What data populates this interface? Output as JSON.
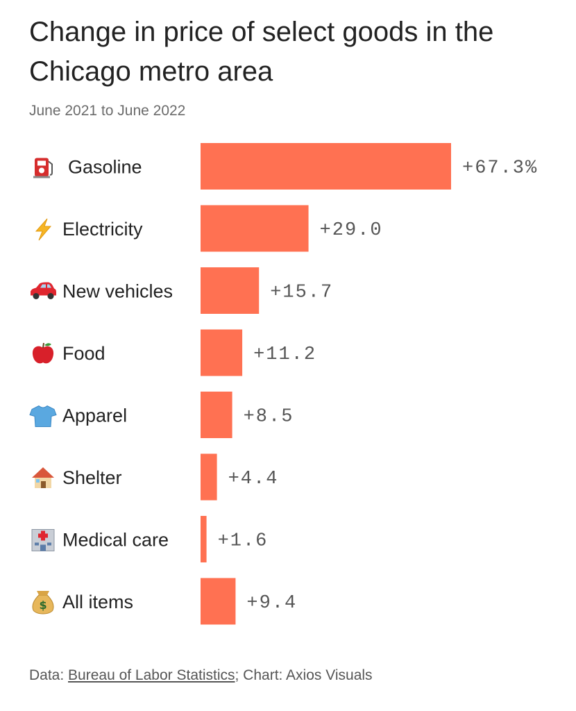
{
  "header": {
    "title": "Change in price of select goods in the Chicago metro area",
    "subtitle": "June 2021 to June 2022"
  },
  "footer": {
    "data_prefix": "Data: ",
    "source_link": "Bureau of Labor Statistics",
    "separator": ";",
    "credit": " Chart: Axios Visuals"
  },
  "colors": {
    "bar": "#ff7152",
    "text": "#222222",
    "value_text": "#555555",
    "subtitle": "#6b6b6b"
  },
  "chart_data": {
    "type": "bar",
    "orientation": "horizontal",
    "title": "Change in price of select goods in the Chicago metro area",
    "subtitle": "June 2021 to June 2022",
    "xlabel": "",
    "ylabel": "",
    "unit": "%",
    "xlim": [
      0,
      67.3
    ],
    "grid": false,
    "categories": [
      "Gasoline",
      "Electricity",
      "New vehicles",
      "Food",
      "Apparel",
      "Shelter",
      "Medical care",
      "All items"
    ],
    "icons": [
      "fuel-pump-icon",
      "lightning-icon",
      "car-icon",
      "apple-icon",
      "shirt-icon",
      "house-icon",
      "hospital-icon",
      "money-bag-icon"
    ],
    "values": [
      67.3,
      29.0,
      15.7,
      11.2,
      8.5,
      4.4,
      1.6,
      9.4
    ],
    "value_labels": [
      "+67.3%",
      "+29.0",
      "+15.7",
      "+11.2",
      "+8.5",
      "+4.4",
      "+1.6",
      "+9.4"
    ]
  }
}
